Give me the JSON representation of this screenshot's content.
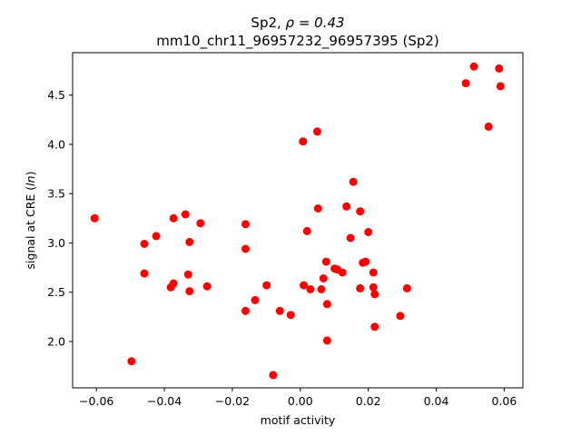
{
  "chart_data": {
    "type": "scatter",
    "title_prefix": "Sp2, ",
    "title_rho": "ρ = 0.43",
    "subtitle": "mm10_chr11_96957232_96957395 (Sp2)",
    "xlabel": "motif activity",
    "ylabel_prefix": "signal at CRE (",
    "ylabel_italic": "ln",
    "ylabel_suffix": ")",
    "xlim": [
      -0.067,
      0.0655
    ],
    "ylim": [
      1.53,
      4.93
    ],
    "xticks": [
      -0.06,
      -0.04,
      -0.02,
      0.0,
      0.02,
      0.04,
      0.06
    ],
    "xtick_labels": [
      "−0.06",
      "−0.04",
      "−0.02",
      "0.00",
      "0.02",
      "0.04",
      "0.06"
    ],
    "yticks": [
      2.0,
      2.5,
      3.0,
      3.5,
      4.0,
      4.5
    ],
    "ytick_labels": [
      "2.0",
      "2.5",
      "3.0",
      "3.5",
      "4.0",
      "4.5"
    ],
    "marker_color": "#ff0000",
    "points": [
      {
        "x": -0.0605,
        "y": 3.25
      },
      {
        "x": -0.0497,
        "y": 1.8
      },
      {
        "x": -0.0459,
        "y": 2.99
      },
      {
        "x": -0.0459,
        "y": 2.69
      },
      {
        "x": -0.0424,
        "y": 3.07
      },
      {
        "x": -0.0381,
        "y": 2.55
      },
      {
        "x": -0.0373,
        "y": 3.25
      },
      {
        "x": -0.0373,
        "y": 2.59
      },
      {
        "x": -0.0338,
        "y": 3.29
      },
      {
        "x": -0.033,
        "y": 2.68
      },
      {
        "x": -0.0326,
        "y": 3.01
      },
      {
        "x": -0.0326,
        "y": 2.51
      },
      {
        "x": -0.0294,
        "y": 3.2
      },
      {
        "x": -0.0274,
        "y": 2.56
      },
      {
        "x": -0.0161,
        "y": 3.19
      },
      {
        "x": -0.0161,
        "y": 2.94
      },
      {
        "x": -0.0161,
        "y": 2.31
      },
      {
        "x": -0.0133,
        "y": 2.42
      },
      {
        "x": -0.0099,
        "y": 2.57
      },
      {
        "x": -0.008,
        "y": 1.66
      },
      {
        "x": -0.006,
        "y": 2.31
      },
      {
        "x": -0.0028,
        "y": 2.27
      },
      {
        "x": 0.0008,
        "y": 4.03
      },
      {
        "x": 0.001,
        "y": 2.57
      },
      {
        "x": 0.002,
        "y": 3.12
      },
      {
        "x": 0.003,
        "y": 2.53
      },
      {
        "x": 0.005,
        "y": 4.13
      },
      {
        "x": 0.0052,
        "y": 3.35
      },
      {
        "x": 0.0062,
        "y": 2.53
      },
      {
        "x": 0.0068,
        "y": 2.64
      },
      {
        "x": 0.0076,
        "y": 2.81
      },
      {
        "x": 0.0079,
        "y": 2.38
      },
      {
        "x": 0.0079,
        "y": 2.01
      },
      {
        "x": 0.0101,
        "y": 2.74
      },
      {
        "x": 0.0109,
        "y": 2.73
      },
      {
        "x": 0.0124,
        "y": 2.7
      },
      {
        "x": 0.0136,
        "y": 3.37
      },
      {
        "x": 0.0148,
        "y": 3.05
      },
      {
        "x": 0.0156,
        "y": 3.62
      },
      {
        "x": 0.0176,
        "y": 3.32
      },
      {
        "x": 0.0176,
        "y": 2.54
      },
      {
        "x": 0.0184,
        "y": 2.8
      },
      {
        "x": 0.0192,
        "y": 2.81
      },
      {
        "x": 0.02,
        "y": 3.11
      },
      {
        "x": 0.0215,
        "y": 2.7
      },
      {
        "x": 0.0215,
        "y": 2.55
      },
      {
        "x": 0.0219,
        "y": 2.48
      },
      {
        "x": 0.0219,
        "y": 2.15
      },
      {
        "x": 0.0294,
        "y": 2.26
      },
      {
        "x": 0.0314,
        "y": 2.54
      },
      {
        "x": 0.0487,
        "y": 4.62
      },
      {
        "x": 0.0511,
        "y": 4.79
      },
      {
        "x": 0.0554,
        "y": 4.18
      },
      {
        "x": 0.0585,
        "y": 4.77
      },
      {
        "x": 0.0589,
        "y": 4.59
      }
    ]
  }
}
